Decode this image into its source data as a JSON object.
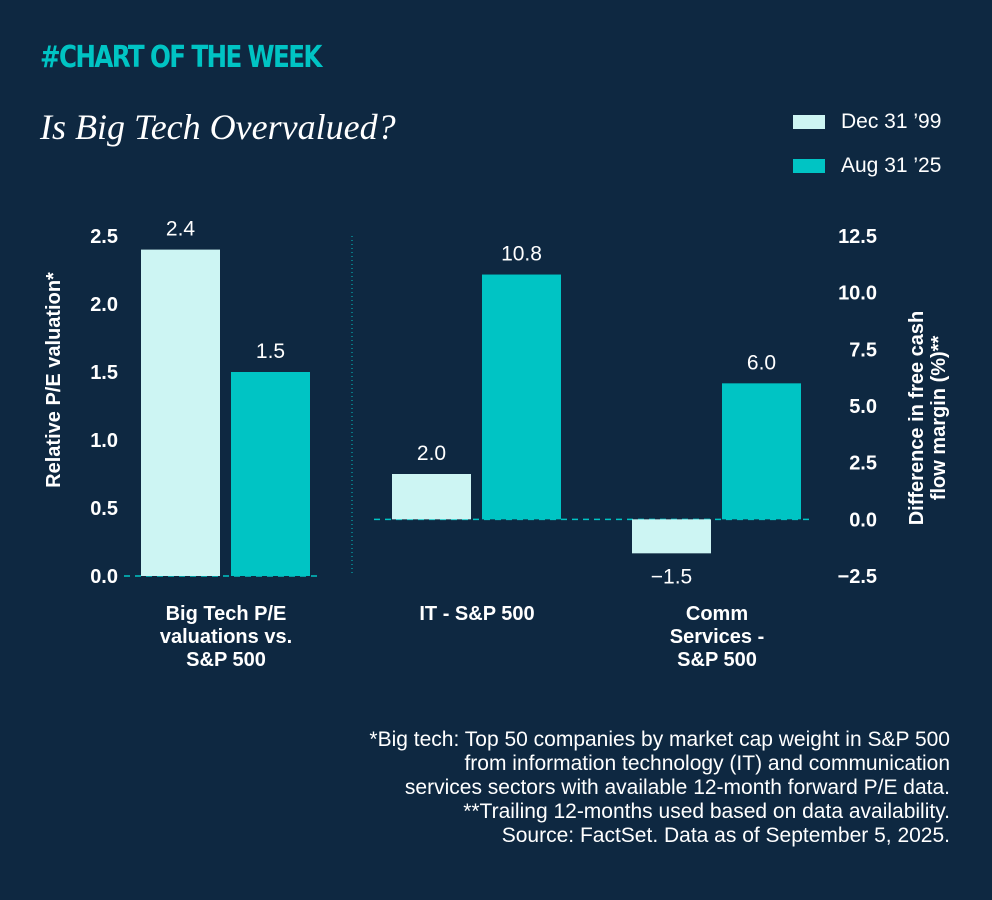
{
  "header": {
    "kicker": "#CHART OF THE WEEK",
    "title": "Is Big Tech Overvalued?"
  },
  "colors": {
    "background": "#0e2841",
    "series_1999": "#cdf5f3",
    "series_2025": "#00c4c4",
    "accent": "#00c4c4"
  },
  "legend": [
    {
      "label": "Dec 31 ’99",
      "color": "#cdf5f3"
    },
    {
      "label": "Aug 31 ’25",
      "color": "#00c4c4"
    }
  ],
  "chart_data": {
    "type": "bar",
    "title": "Is Big Tech Overvalued?",
    "series_names": [
      "Dec 31 ’99",
      "Aug 31 ’25"
    ],
    "left_axis": {
      "label": "Relative P/E valuation*",
      "ylim": [
        0,
        2.5
      ],
      "ticks": [
        "0.0",
        "0.5",
        "1.0",
        "1.5",
        "2.0",
        "2.5"
      ]
    },
    "right_axis": {
      "label_lines": [
        "Difference in free cash",
        "flow margin (%)**"
      ],
      "ylim": [
        -2.5,
        12.5
      ],
      "ticks": [
        "−2.5",
        "0.0",
        "2.5",
        "5.0",
        "7.5",
        "10.0",
        "12.5"
      ]
    },
    "groups": [
      {
        "category_lines": [
          "Big Tech P/E",
          "valuations vs.",
          "S&P 500"
        ],
        "axis": "left",
        "values": [
          2.4,
          1.5
        ],
        "labels": [
          "2.4",
          "1.5"
        ]
      },
      {
        "category_lines": [
          "IT - S&P 500"
        ],
        "axis": "right",
        "values": [
          2.0,
          10.8
        ],
        "labels": [
          "2.0",
          "10.8"
        ]
      },
      {
        "category_lines": [
          "Comm",
          "Services -",
          "S&P 500"
        ],
        "axis": "right",
        "values": [
          -1.5,
          6.0
        ],
        "labels": [
          "−1.5",
          "6.0"
        ]
      }
    ]
  },
  "footnote": [
    "*Big tech: Top 50 companies by market cap weight in S&P 500",
    "from information technology (IT) and communication",
    "services sectors with available 12-month forward P/E data.",
    "**Trailing 12-months used based on data availability.",
    "Source: FactSet. Data as of September 5, 2025."
  ]
}
